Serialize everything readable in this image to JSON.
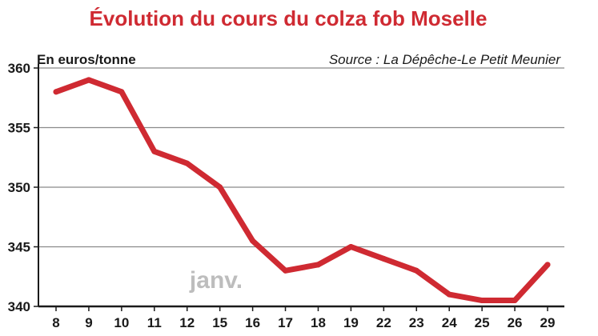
{
  "chart_data": {
    "type": "line",
    "title": "Évolution du cours du colza fob Moselle",
    "ylabel": "En euros/tonne",
    "source": "Source : La Dépêche-Le Petit Meunier",
    "annotation": "janv.",
    "categories": [
      "8",
      "9",
      "10",
      "11",
      "12",
      "15",
      "16",
      "17",
      "18",
      "19",
      "22",
      "23",
      "24",
      "25",
      "26",
      "29"
    ],
    "values": [
      358,
      359,
      358,
      353,
      352,
      350,
      345.5,
      343,
      343.5,
      345,
      344,
      343,
      341,
      340.5,
      340.5,
      343.5
    ],
    "yticks": [
      "340",
      "345",
      "350",
      "355",
      "360"
    ],
    "ylim": [
      340,
      360
    ],
    "grid": true,
    "colors": {
      "line": "#cf2a32",
      "title": "#cf2a32",
      "grid": "#8a8a8a",
      "axis": "#1a1a1a",
      "annotation": "#bdbdbd"
    }
  }
}
